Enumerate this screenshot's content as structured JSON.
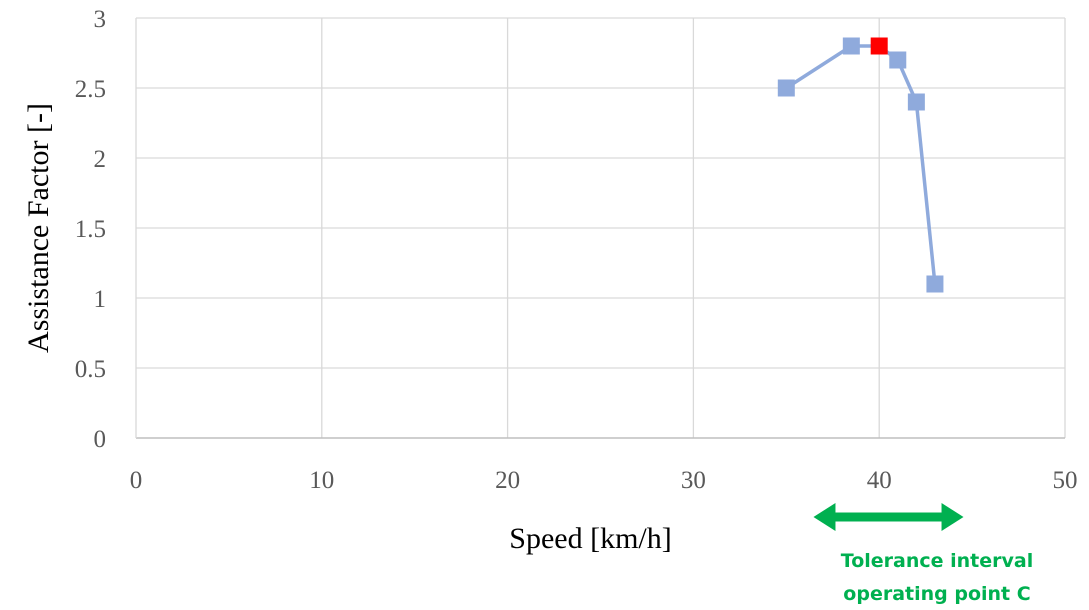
{
  "chart_data": {
    "type": "scatter",
    "xlabel": "Speed [km/h]",
    "ylabel": "Assistance Factor [-]",
    "xlim": [
      0,
      50
    ],
    "ylim": [
      0,
      3
    ],
    "xticks": [
      0,
      10,
      20,
      30,
      40,
      50
    ],
    "yticks": [
      0,
      0.5,
      1,
      1.5,
      2,
      2.5,
      3
    ],
    "xtick_labels": [
      "0",
      "10",
      "20",
      "30",
      "40",
      "50"
    ],
    "ytick_labels": [
      "0",
      "0.5",
      "1",
      "1.5",
      "2",
      "2.5",
      "3"
    ],
    "grid": "vertical and horizontal major gridlines",
    "series": [
      {
        "x": [
          35,
          38.5,
          40,
          41,
          42,
          43
        ],
        "y": [
          2.5,
          2.8,
          2.8,
          2.7,
          2.4,
          1.1
        ],
        "color": "#8faadc",
        "marker": "square"
      }
    ],
    "highlight_point": {
      "x": 40,
      "y": 2.8,
      "color": "#ff0000",
      "marker": "square"
    },
    "annotation": {
      "lines": [
        "Tolerance interval",
        "operating point C"
      ],
      "color": "#00b050",
      "arrow_x_range": [
        37,
        44
      ]
    }
  }
}
